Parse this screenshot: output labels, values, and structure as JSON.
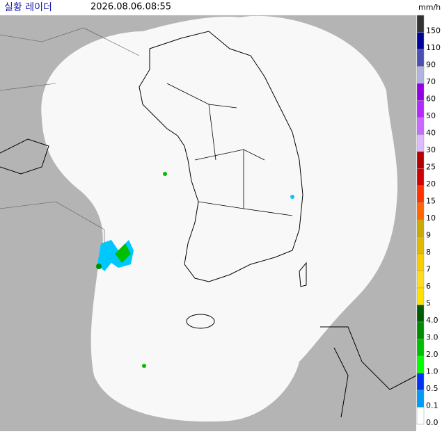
{
  "header": {
    "title": "실황 레이더",
    "time": "2026.08.06.08:55",
    "unit": "mm/h"
  },
  "legend": {
    "items": [
      {
        "label": "150",
        "color": "#333333"
      },
      {
        "label": "110",
        "color": "#00039a"
      },
      {
        "label": "90",
        "color": "#4c4eb1"
      },
      {
        "label": "70",
        "color": "#b3b4de"
      },
      {
        "label": "60",
        "color": "#9300e4"
      },
      {
        "label": "50",
        "color": "#b329ff"
      },
      {
        "label": "40",
        "color": "#c969ff"
      },
      {
        "label": "30",
        "color": "#e0b8ff"
      },
      {
        "label": "25",
        "color": "#b40000"
      },
      {
        "label": "20",
        "color": "#d20000"
      },
      {
        "label": "15",
        "color": "#ff3300"
      },
      {
        "label": "10",
        "color": "#ff6600"
      },
      {
        "label": "9",
        "color": "#ccaa00"
      },
      {
        "label": "8",
        "color": "#e0b900"
      },
      {
        "label": "7",
        "color": "#f9cd00"
      },
      {
        "label": "6",
        "color": "#ffdc1f"
      },
      {
        "label": "5",
        "color": "#ffe100"
      },
      {
        "label": "4.0",
        "color": "#005a00"
      },
      {
        "label": "3.0",
        "color": "#008c00"
      },
      {
        "label": "2.0",
        "color": "#00be00"
      },
      {
        "label": "1.0",
        "color": "#00ff00"
      },
      {
        "label": "0.5",
        "color": "#0033f5"
      },
      {
        "label": "0.1",
        "color": "#009bf5"
      },
      {
        "label": "0.0",
        "color": "#ffffff"
      }
    ]
  }
}
